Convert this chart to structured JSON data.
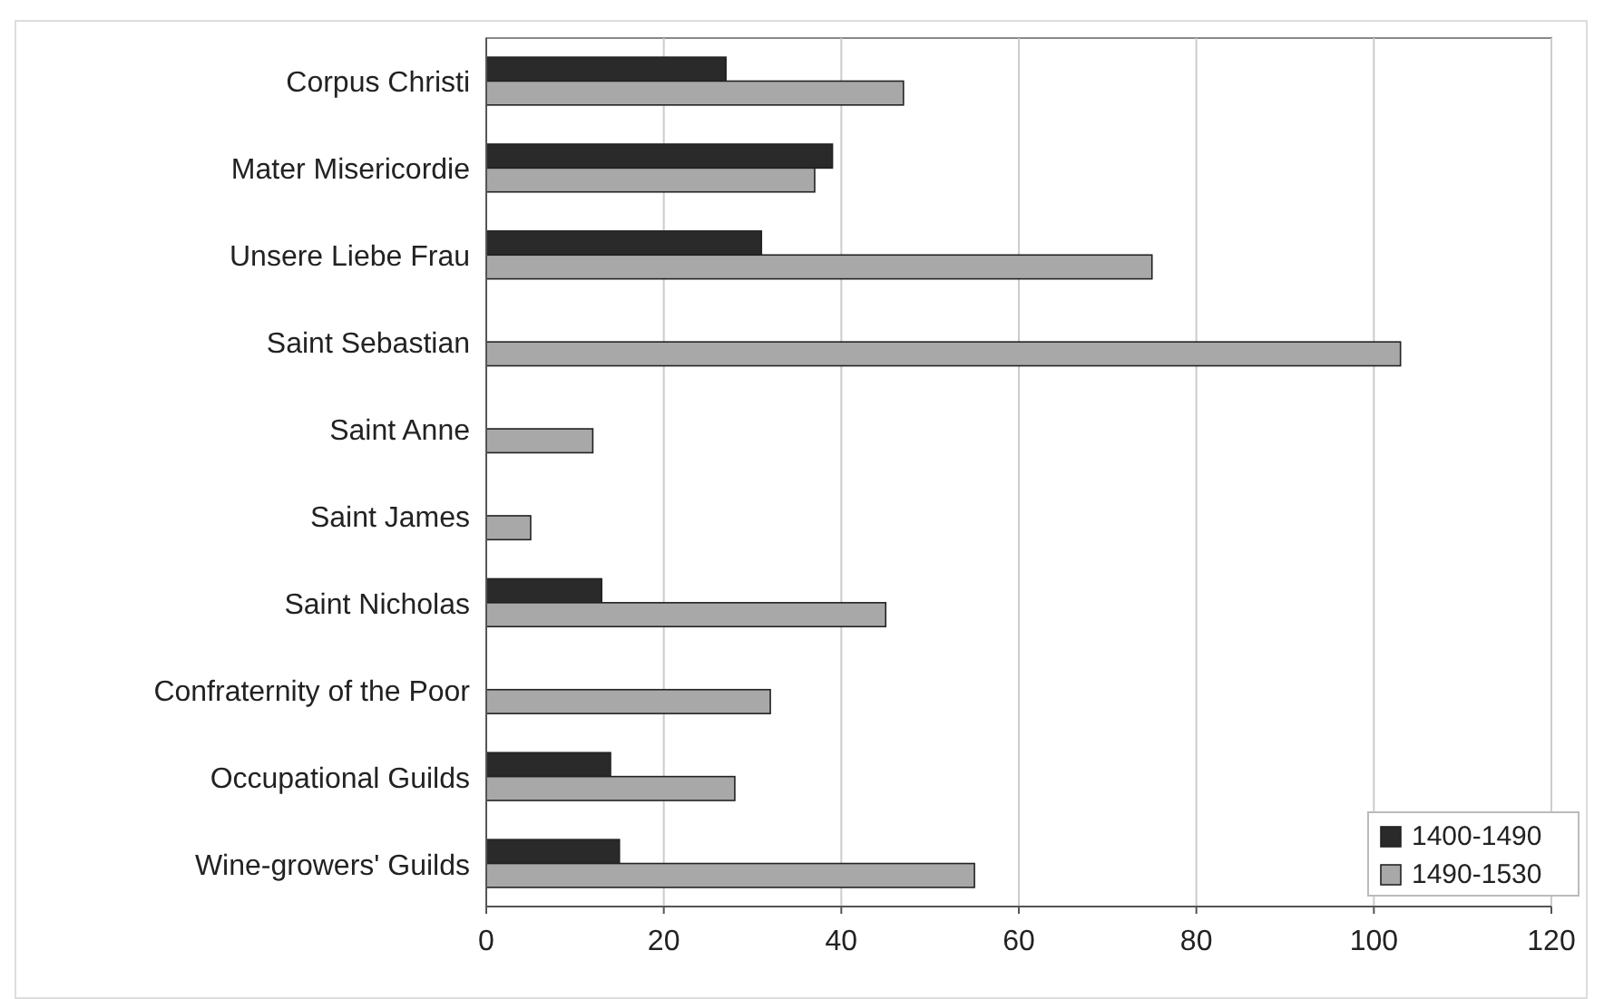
{
  "chart_data": {
    "type": "bar",
    "orientation": "horizontal",
    "categories": [
      "Corpus Christi",
      "Mater Misericordie",
      "Unsere Liebe Frau",
      "Saint Sebastian",
      "Saint Anne",
      "Saint James",
      "Saint Nicholas",
      "Confraternity of the Poor",
      "Occupational Guilds",
      "Wine-growers' Guilds"
    ],
    "series": [
      {
        "name": "1400-1490",
        "color": "#2a2a2a",
        "values": [
          27,
          39,
          31,
          null,
          null,
          null,
          13,
          null,
          14,
          15
        ]
      },
      {
        "name": "1490-1530",
        "color": "#a8a8a8",
        "values": [
          47,
          37,
          75,
          103,
          12,
          5,
          45,
          32,
          28,
          55
        ]
      }
    ],
    "xlim": [
      0,
      120
    ],
    "xticks": [
      0,
      20,
      40,
      60,
      80,
      100,
      120
    ],
    "grid": "x",
    "legend": "bottom right"
  }
}
